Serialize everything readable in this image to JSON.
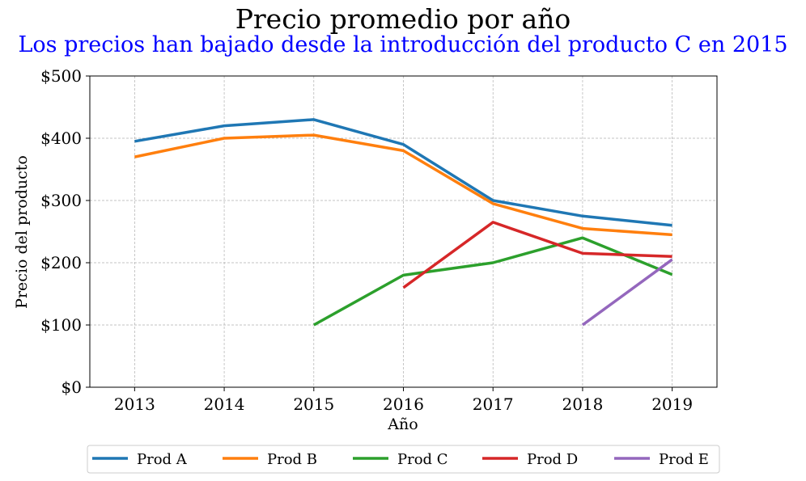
{
  "chart_data": {
    "type": "line",
    "title": "Precio promedio por año",
    "subtitle": "Los precios han bajado desde la introducción del producto C en 2015",
    "xlabel": "Año",
    "ylabel": "Precio del producto",
    "categories": [
      "2013",
      "2014",
      "2015",
      "2016",
      "2017",
      "2018",
      "2019"
    ],
    "ylim": [
      0,
      500
    ],
    "yticks": [
      "$0",
      "$100",
      "$200",
      "$300",
      "$400",
      "$500"
    ],
    "grid": true,
    "legend_position": "bottom-center",
    "series": [
      {
        "name": "Prod A",
        "color": "#1f77b4",
        "values": [
          395,
          420,
          430,
          390,
          300,
          275,
          260
        ]
      },
      {
        "name": "Prod B",
        "color": "#ff7f0e",
        "values": [
          370,
          400,
          405,
          380,
          295,
          255,
          245
        ]
      },
      {
        "name": "Prod C",
        "color": "#2ca02c",
        "values": [
          null,
          null,
          100,
          180,
          200,
          240,
          181
        ]
      },
      {
        "name": "Prod D",
        "color": "#d62728",
        "values": [
          null,
          null,
          null,
          160,
          265,
          215,
          210
        ]
      },
      {
        "name": "Prod E",
        "color": "#9467bd",
        "values": [
          null,
          null,
          null,
          null,
          null,
          100,
          205
        ]
      }
    ]
  }
}
